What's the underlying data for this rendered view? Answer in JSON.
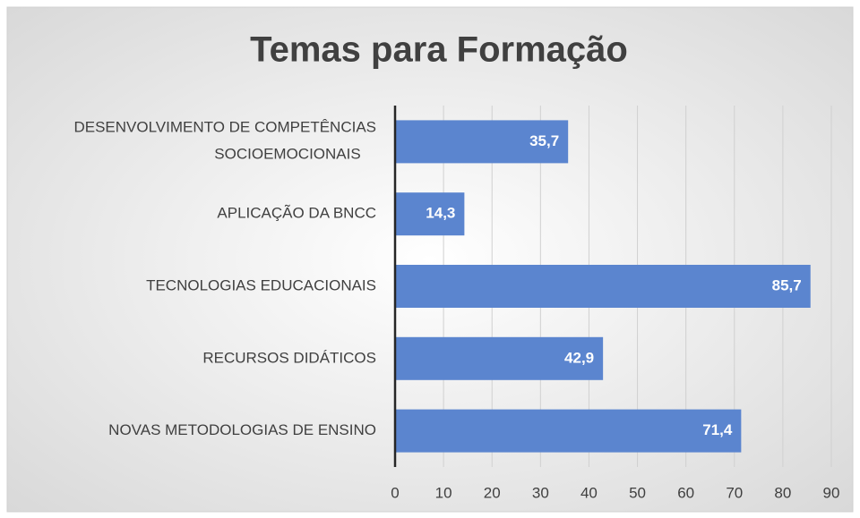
{
  "chart_data": {
    "type": "bar",
    "orientation": "horizontal",
    "title": "Temas para Formação",
    "categories": [
      "DESENVOLVIMENTO DE COMPETÊNCIAS\nSOCIOEMOCIONAIS",
      "APLICAÇÃO DA BNCC",
      "TECNOLOGIAS EDUCACIONAIS",
      "RECURSOS DIDÁTICOS",
      "NOVAS METODOLOGIAS DE ENSINO"
    ],
    "values": [
      35.7,
      14.3,
      85.7,
      42.9,
      71.4
    ],
    "value_labels": [
      "35,7",
      "14,3",
      "85,7",
      "42,9",
      "71,4"
    ],
    "color": "#5b85cf",
    "xlim": [
      0,
      90
    ],
    "xticks": [
      0,
      10,
      20,
      30,
      40,
      50,
      60,
      70,
      80,
      90
    ],
    "grid": true
  }
}
